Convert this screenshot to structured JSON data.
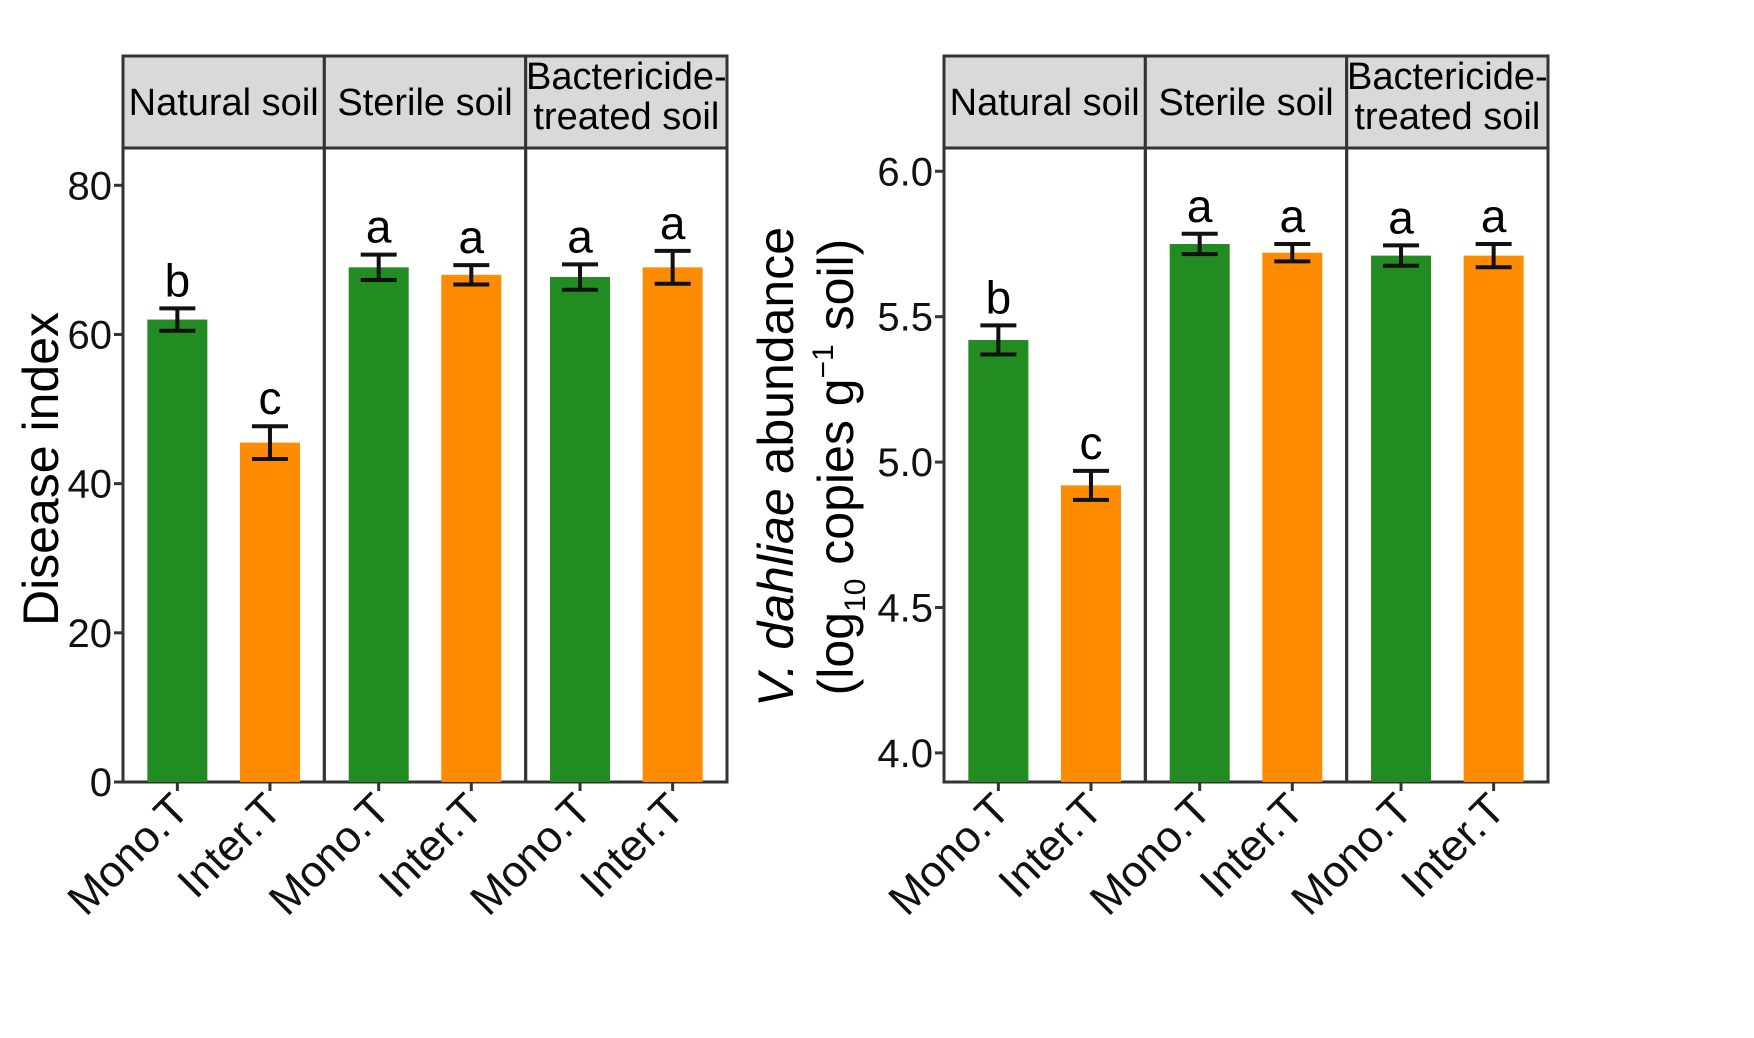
{
  "colors": {
    "mono": "#228b22",
    "inter": "#ff8c00",
    "strip_bg": "#d9d9d9",
    "frame": "#333333"
  },
  "chart_data": [
    {
      "type": "bar",
      "panel": "left",
      "ylabel": "Disease index",
      "ylim": [
        0,
        85
      ],
      "yticks": [
        0,
        20,
        40,
        60,
        80
      ],
      "ytick_labels": [
        "0",
        "20",
        "40",
        "60",
        "80"
      ],
      "categories": [
        "Mono.T",
        "Inter.T"
      ],
      "facets": [
        {
          "label_lines": [
            "Natural soil"
          ],
          "values": [
            62,
            45.5
          ],
          "errors": [
            1.5,
            2.2
          ],
          "letters": [
            "b",
            "c"
          ]
        },
        {
          "label_lines": [
            "Sterile soil"
          ],
          "values": [
            69,
            68
          ],
          "errors": [
            1.7,
            1.3
          ],
          "letters": [
            "a",
            "a"
          ]
        },
        {
          "label_lines": [
            "Bactericide-",
            "treated soil"
          ],
          "values": [
            67.7,
            69
          ],
          "errors": [
            1.7,
            2.2
          ],
          "letters": [
            "a",
            "a"
          ]
        }
      ]
    },
    {
      "type": "bar",
      "panel": "right",
      "ylabel_line1_italic": "V. dahliae",
      "ylabel_line1_rest": " abundance",
      "ylabel_line2_a": "(log",
      "ylabel_line2_sub": "10",
      "ylabel_line2_b": " copies g",
      "ylabel_line2_sup": "−1",
      "ylabel_line2_c": " soil)",
      "ylim": [
        3.9,
        6.08
      ],
      "yticks": [
        4.0,
        4.5,
        5.0,
        5.5,
        6.0
      ],
      "ytick_labels": [
        "4.0",
        "4.5",
        "5.0",
        "5.5",
        "6.0"
      ],
      "categories": [
        "Mono.T",
        "Inter.T"
      ],
      "facets": [
        {
          "label_lines": [
            "Natural soil"
          ],
          "values": [
            5.42,
            4.92
          ],
          "errors": [
            0.05,
            0.05
          ],
          "letters": [
            "b",
            "c"
          ]
        },
        {
          "label_lines": [
            "Sterile soil"
          ],
          "values": [
            5.75,
            5.72
          ],
          "errors": [
            0.035,
            0.03
          ],
          "letters": [
            "a",
            "a"
          ]
        },
        {
          "label_lines": [
            "Bactericide-",
            "treated soil"
          ],
          "values": [
            5.71,
            5.71
          ],
          "errors": [
            0.035,
            0.04
          ],
          "letters": [
            "a",
            "a"
          ]
        }
      ]
    }
  ]
}
